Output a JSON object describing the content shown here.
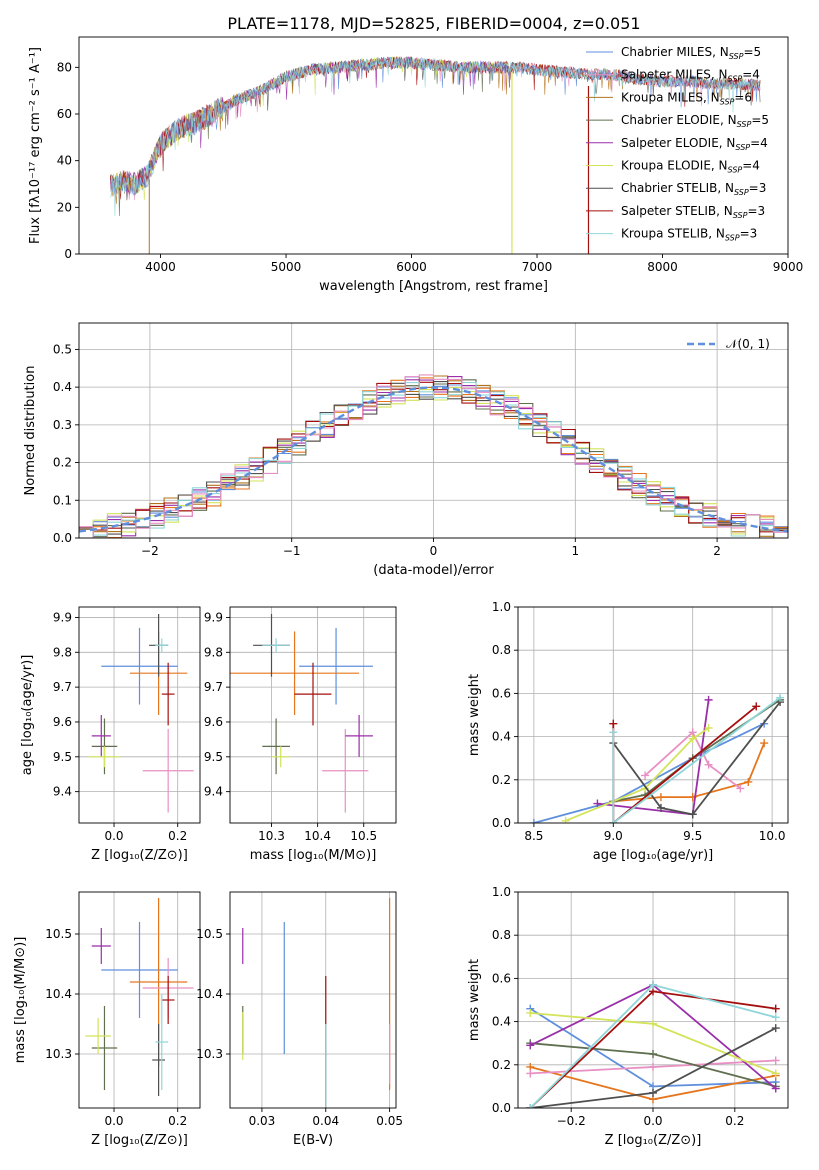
{
  "figure": {
    "title": "PLATE=1178, MJD=52825, FIBERID=0004, z=0.051"
  },
  "colors": [
    "#5f8fdd",
    "#e6761d",
    "#b1731f",
    "#5f6f4f",
    "#9a2fa9",
    "#d3e35a",
    "#4f4f4f",
    "#a50f0f",
    "#8fd6d9",
    "#e88fc3"
  ],
  "chart_data": [
    {
      "id": "spectrum",
      "type": "line",
      "xlabel": "wavelength [Angstrom, rest frame]",
      "ylabel": "Flux [fλ10⁻¹⁷ erg cm⁻² s⁻¹ A⁻¹]",
      "xlim": [
        3350,
        9000
      ],
      "ylim": [
        0,
        93
      ],
      "xticks": [
        4000,
        5000,
        6000,
        7000,
        8000,
        9000
      ],
      "yticks": [
        0,
        20,
        40,
        60,
        80
      ],
      "legend_position": "upper-right",
      "series": [
        {
          "name": "Chabrier MILES, N_SSP=5",
          "label_main": "Chabrier MILES, N",
          "label_sub": "SSP",
          "label_end": "=5",
          "color": "#5f8fdd"
        },
        {
          "name": "Salpeter MILES, N_SSP=4",
          "label_main": "Salpeter MILES, N",
          "label_sub": "SSP",
          "label_end": "=4",
          "color": "#e88fc3"
        },
        {
          "name": "Kroupa MILES, N_SSP=6",
          "label_main": "Kroupa MILES, N",
          "label_sub": "SSP",
          "label_end": "=6",
          "color": "#b1731f"
        },
        {
          "name": "Chabrier ELODIE, N_SSP=5",
          "label_main": "Chabrier ELODIE, N",
          "label_sub": "SSP",
          "label_end": "=5",
          "color": "#5f6f4f"
        },
        {
          "name": "Salpeter ELODIE, N_SSP=4",
          "label_main": "Salpeter ELODIE, N",
          "label_sub": "SSP",
          "label_end": "=4",
          "color": "#9a2fa9"
        },
        {
          "name": "Kroupa ELODIE, N_SSP=4",
          "label_main": "Kroupa ELODIE, N",
          "label_sub": "SSP",
          "label_end": "=4",
          "color": "#d3e35a"
        },
        {
          "name": "Chabrier STELIB, N_SSP=3",
          "label_main": "Chabrier STELIB, N",
          "label_sub": "SSP",
          "label_end": "=3",
          "color": "#4f4f4f"
        },
        {
          "name": "Salpeter STELIB, N_SSP=3",
          "label_main": "Salpeter STELIB, N",
          "label_sub": "SSP",
          "label_end": "=3",
          "color": "#a50f0f"
        },
        {
          "name": "Kroupa STELIB, N_SSP=3",
          "label_main": "Kroupa STELIB, N",
          "label_sub": "SSP",
          "label_end": "=3",
          "color": "#8fd6d9"
        }
      ],
      "continuum": {
        "x": [
          3600,
          3700,
          3800,
          3900,
          4000,
          4100,
          4200,
          4300,
          4400,
          4600,
          4800,
          5000,
          5200,
          5400,
          5600,
          5800,
          6000,
          6200,
          6400,
          6600,
          6800,
          7000,
          7200,
          7400,
          7600,
          7800,
          8000,
          8200,
          8400,
          8600,
          8800
        ],
        "y": [
          29,
          31,
          30,
          34,
          47,
          52,
          55,
          57,
          60,
          66,
          70,
          76,
          79,
          80,
          81,
          82,
          82,
          81,
          80,
          80,
          80,
          79,
          78,
          77,
          77,
          75,
          74,
          74,
          73,
          73,
          72
        ]
      },
      "gaps": [
        {
          "x": 3910
        },
        {
          "x": 6800
        },
        {
          "x": 7410
        }
      ]
    },
    {
      "id": "residual-hist",
      "type": "area",
      "xlabel": "(data-model)/error",
      "ylabel": "Normed distribution",
      "xlim": [
        -2.5,
        2.5
      ],
      "ylim": [
        0,
        0.57
      ],
      "xticks": [
        -2,
        -1,
        0,
        1,
        2
      ],
      "yticks": [
        0.0,
        0.1,
        0.2,
        0.3,
        0.4,
        0.5
      ],
      "legend": "𝒩(0, 1)",
      "legend_position": "upper-right",
      "reference": "N(0,1) dashed curve"
    },
    {
      "id": "age-vs-z",
      "type": "scatter",
      "xlabel": "Z [log₁₀(Z/Z⊙)]",
      "ylabel": "age  [log₁₀(age/yr)]",
      "xlim": [
        -0.11,
        0.27
      ],
      "ylim": [
        9.31,
        9.93
      ],
      "xticks": [
        0.0,
        0.2
      ],
      "yticks": [
        9.4,
        9.5,
        9.6,
        9.7,
        9.8,
        9.9
      ],
      "points": [
        {
          "x": 0.08,
          "y": 9.76,
          "xerr": 0.12,
          "yerr": 0.11,
          "color": "#5f8fdd"
        },
        {
          "x": 0.14,
          "y": 9.74,
          "xerr": 0.09,
          "yerr": 0.12,
          "color": "#e6761d"
        },
        {
          "x": 0.17,
          "y": 9.46,
          "xerr": 0.08,
          "yerr": 0.12,
          "color": "#e88fc3"
        },
        {
          "x": -0.03,
          "y": 9.53,
          "xerr": 0.04,
          "yerr": 0.08,
          "color": "#5f6f4f"
        },
        {
          "x": -0.04,
          "y": 9.56,
          "xerr": 0.03,
          "yerr": 0.06,
          "color": "#9a2fa9"
        },
        {
          "x": -0.03,
          "y": 9.5,
          "xerr": 0.05,
          "yerr": 0.03,
          "color": "#d3e35a"
        },
        {
          "x": 0.14,
          "y": 9.82,
          "xerr": 0.03,
          "yerr": 0.09,
          "color": "#4f4f4f"
        },
        {
          "x": 0.17,
          "y": 9.68,
          "xerr": 0.02,
          "yerr": 0.09,
          "color": "#a50f0f"
        },
        {
          "x": 0.15,
          "y": 9.82,
          "xerr": 0.02,
          "yerr": 0.02,
          "color": "#8fd6d9"
        }
      ]
    },
    {
      "id": "age-vs-mass",
      "type": "scatter",
      "xlabel": "mass [log₁₀(M/M⊙)]",
      "ylabel": "",
      "xlim": [
        10.21,
        10.57
      ],
      "ylim": [
        9.31,
        9.93
      ],
      "xticks": [
        10.3,
        10.4,
        10.5
      ],
      "yticks": [
        9.4,
        9.5,
        9.6,
        9.7,
        9.8,
        9.9
      ],
      "points": [
        {
          "x": 10.44,
          "y": 9.76,
          "xerr": 0.08,
          "yerr": 0.11,
          "color": "#5f8fdd"
        },
        {
          "x": 10.35,
          "y": 9.74,
          "xerr": 0.14,
          "yerr": 0.12,
          "color": "#e6761d"
        },
        {
          "x": 10.46,
          "y": 9.46,
          "xerr": 0.05,
          "yerr": 0.12,
          "color": "#e88fc3"
        },
        {
          "x": 10.31,
          "y": 9.53,
          "xerr": 0.03,
          "yerr": 0.08,
          "color": "#5f6f4f"
        },
        {
          "x": 10.49,
          "y": 9.56,
          "xerr": 0.03,
          "yerr": 0.06,
          "color": "#9a2fa9"
        },
        {
          "x": 10.32,
          "y": 9.5,
          "xerr": 0.02,
          "yerr": 0.03,
          "color": "#d3e35a"
        },
        {
          "x": 10.3,
          "y": 9.82,
          "xerr": 0.04,
          "yerr": 0.09,
          "color": "#4f4f4f"
        },
        {
          "x": 10.39,
          "y": 9.68,
          "xerr": 0.04,
          "yerr": 0.09,
          "color": "#a50f0f"
        },
        {
          "x": 10.31,
          "y": 9.82,
          "xerr": 0.03,
          "yerr": 0.02,
          "color": "#8fd6d9"
        }
      ]
    },
    {
      "id": "mass-weight-vs-age",
      "type": "line",
      "xlabel": "age  [log₁₀(age/yr)]",
      "ylabel": "mass weight",
      "xlim": [
        8.4,
        10.1
      ],
      "ylim": [
        0,
        1.0
      ],
      "xticks": [
        8.5,
        9.0,
        9.5,
        10.0
      ],
      "yticks": [
        0.0,
        0.2,
        0.4,
        0.6,
        0.8,
        1.0
      ],
      "series": [
        {
          "color": "#5f8fdd",
          "x": [
            8.5,
            9.0,
            9.5,
            9.95
          ],
          "y": [
            0.0,
            0.1,
            0.3,
            0.46
          ]
        },
        {
          "color": "#e6761d",
          "x": [
            9.0,
            9.3,
            9.5,
            9.85,
            9.95
          ],
          "y": [
            0.1,
            0.12,
            0.12,
            0.19,
            0.37
          ]
        },
        {
          "color": "#e88fc3",
          "x": [
            9.2,
            9.5,
            9.6,
            9.8
          ],
          "y": [
            0.22,
            0.42,
            0.27,
            0.16
          ]
        },
        {
          "color": "#5f6f4f",
          "x": [
            9.0,
            9.2,
            9.5,
            10.05
          ],
          "y": [
            0.1,
            0.13,
            0.3,
            0.57
          ]
        },
        {
          "color": "#9a2fa9",
          "x": [
            8.9,
            9.5,
            9.6
          ],
          "y": [
            0.09,
            0.04,
            0.57
          ]
        },
        {
          "color": "#d3e35a",
          "x": [
            8.7,
            9.2,
            9.5,
            9.6
          ],
          "y": [
            0.01,
            0.16,
            0.39,
            0.44
          ]
        },
        {
          "color": "#4f4f4f",
          "x": [
            9.0,
            9.3,
            9.5,
            10.05
          ],
          "y": [
            0.37,
            0.07,
            0.04,
            0.56
          ]
        },
        {
          "color": "#a50f0f",
          "x": [
            9.0,
            9.0,
            9.9
          ],
          "y": [
            0.46,
            0.0,
            0.54
          ]
        },
        {
          "color": "#8fd6d9",
          "x": [
            9.0,
            9.0,
            10.05
          ],
          "y": [
            0.42,
            0.0,
            0.58
          ]
        }
      ]
    },
    {
      "id": "mass-vs-z",
      "type": "scatter",
      "xlabel": "Z [log₁₀(Z/Z⊙)]",
      "ylabel": "mass [log₁₀(M/M⊙)]",
      "xlim": [
        -0.11,
        0.27
      ],
      "ylim": [
        10.21,
        10.57
      ],
      "xticks": [
        0.0,
        0.2
      ],
      "yticks": [
        10.3,
        10.4,
        10.5
      ],
      "points": [
        {
          "x": 0.08,
          "y": 10.44,
          "xerr": 0.12,
          "yerr": 0.08,
          "color": "#5f8fdd"
        },
        {
          "x": 0.14,
          "y": 10.42,
          "xerr": 0.09,
          "yerr": 0.14,
          "color": "#e6761d"
        },
        {
          "x": 0.17,
          "y": 10.41,
          "xerr": 0.08,
          "yerr": 0.05,
          "color": "#e88fc3"
        },
        {
          "x": -0.03,
          "y": 10.31,
          "xerr": 0.04,
          "yerr": 0.07,
          "color": "#5f6f4f"
        },
        {
          "x": -0.04,
          "y": 10.48,
          "xerr": 0.03,
          "yerr": 0.03,
          "color": "#9a2fa9"
        },
        {
          "x": -0.05,
          "y": 10.33,
          "xerr": 0.04,
          "yerr": 0.03,
          "color": "#d3e35a"
        },
        {
          "x": 0.14,
          "y": 10.29,
          "xerr": 0.02,
          "yerr": 0.06,
          "color": "#4f4f4f"
        },
        {
          "x": 0.17,
          "y": 10.39,
          "xerr": 0.02,
          "yerr": 0.04,
          "color": "#a50f0f"
        },
        {
          "x": 0.15,
          "y": 10.32,
          "xerr": 0.02,
          "yerr": 0.08,
          "color": "#8fd6d9"
        }
      ]
    },
    {
      "id": "mass-vs-ebv",
      "type": "scatter",
      "xlabel": "E(B-V)",
      "ylabel": "",
      "xlim": [
        0.025,
        0.051
      ],
      "ylim": [
        10.21,
        10.57
      ],
      "xticks": [
        0.03,
        0.04,
        0.05
      ],
      "yticks": [
        10.3,
        10.4,
        10.5
      ],
      "points": [
        {
          "x": 0.0335,
          "y": 10.41,
          "yerr": 0.11,
          "color": "#5f8fdd"
        },
        {
          "x": 0.05,
          "y": 10.4,
          "yerr": 0.16,
          "color": "#e6761d"
        },
        {
          "x": 0.05,
          "y": 10.3,
          "yerr": 0.05,
          "color": "#e88fc3"
        },
        {
          "x": 0.027,
          "y": 10.34,
          "yerr": 0.04,
          "color": "#5f6f4f"
        },
        {
          "x": 0.027,
          "y": 10.48,
          "yerr": 0.03,
          "color": "#9a2fa9"
        },
        {
          "x": 0.027,
          "y": 10.33,
          "yerr": 0.04,
          "color": "#d3e35a"
        },
        {
          "x": 0.04,
          "y": 10.28,
          "yerr": 0.07,
          "color": "#4f4f4f"
        },
        {
          "x": 0.04,
          "y": 10.39,
          "yerr": 0.04,
          "color": "#a50f0f"
        },
        {
          "x": 0.04,
          "y": 10.28,
          "yerr": 0.07,
          "color": "#8fd6d9"
        }
      ]
    },
    {
      "id": "mass-weight-vs-z",
      "type": "line",
      "xlabel": "Z [log₁₀(Z/Z⊙)]",
      "ylabel": "mass weight",
      "xlim": [
        -0.33,
        0.33
      ],
      "ylim": [
        0,
        1.0
      ],
      "xticks": [
        -0.2,
        0.0,
        0.2
      ],
      "yticks": [
        0.0,
        0.2,
        0.4,
        0.6,
        0.8,
        1.0
      ],
      "series": [
        {
          "color": "#5f8fdd",
          "x": [
            -0.3,
            0.0,
            0.3
          ],
          "y": [
            0.46,
            0.1,
            0.12
          ]
        },
        {
          "color": "#e6761d",
          "x": [
            -0.3,
            0.0,
            0.3
          ],
          "y": [
            0.19,
            0.04,
            0.15
          ]
        },
        {
          "color": "#e88fc3",
          "x": [
            -0.3,
            0.0,
            0.3
          ],
          "y": [
            0.16,
            0.19,
            0.22
          ]
        },
        {
          "color": "#5f6f4f",
          "x": [
            -0.3,
            0.0,
            0.3
          ],
          "y": [
            0.3,
            0.25,
            0.1
          ]
        },
        {
          "color": "#9a2fa9",
          "x": [
            -0.3,
            0.0,
            0.3
          ],
          "y": [
            0.29,
            0.57,
            0.09
          ]
        },
        {
          "color": "#d3e35a",
          "x": [
            -0.3,
            0.0,
            0.3
          ],
          "y": [
            0.44,
            0.39,
            0.16
          ]
        },
        {
          "color": "#4f4f4f",
          "x": [
            -0.3,
            0.0,
            0.3
          ],
          "y": [
            0.0,
            0.07,
            0.37
          ]
        },
        {
          "color": "#a50f0f",
          "x": [
            -0.3,
            0.0,
            0.3
          ],
          "y": [
            0.0,
            0.54,
            0.46
          ]
        },
        {
          "color": "#8fd6d9",
          "x": [
            -0.3,
            0.0,
            0.3
          ],
          "y": [
            0.0,
            0.57,
            0.42
          ]
        }
      ]
    }
  ]
}
